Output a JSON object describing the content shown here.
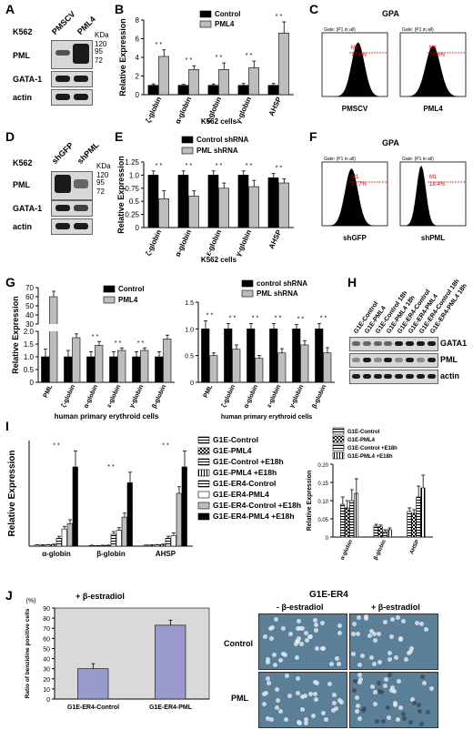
{
  "panels": {
    "A": "A",
    "B": "B",
    "C": "C",
    "D": "D",
    "E": "E",
    "F": "F",
    "G": "G",
    "H": "H",
    "I": "I",
    "J": "J"
  },
  "A": {
    "cell": "K562",
    "lanes": [
      "PMSCV",
      "PML4"
    ],
    "kda": "KDa",
    "markers": [
      "120",
      "95",
      "72"
    ],
    "rows": [
      "PML",
      "GATA-1",
      "actin"
    ]
  },
  "D": {
    "cell": "K562",
    "lanes": [
      "shGFP",
      "shPML"
    ],
    "kda": "KDa",
    "markers": [
      "120",
      "95",
      "72"
    ],
    "rows": [
      "PML",
      "GATA-1",
      "actin"
    ]
  },
  "C": {
    "title": "GPA",
    "plots": [
      {
        "gate": "Gate: (P1 in all)",
        "marker": "M1",
        "pct": "77.6%",
        "label": "PMSCV"
      },
      {
        "gate": "Gate: (P1 in all)",
        "marker": "M1",
        "pct": "77.6%",
        "label": "PML4"
      }
    ]
  },
  "F": {
    "title": "GPA",
    "plots": [
      {
        "gate": "Gate: (P1 in all)",
        "marker": "M1",
        "pct": "77.7%",
        "label": "shGFP"
      },
      {
        "gate": "Gate: (P1 in all)",
        "marker": "M1",
        "pct": "18.4%",
        "label": "shPML"
      }
    ]
  },
  "H": {
    "lanes": [
      "G1E-Control",
      "G1E-PML4",
      "G1E-Control 18h",
      "G1E-PML4 18h",
      "G1E-ER4-Control",
      "G1E-ER4-PML4",
      "G1E-ER4-Control 18h",
      "G1E-ER4-PML4 18h"
    ],
    "rows": [
      "GATA1",
      "PML",
      "actin"
    ]
  },
  "J_micro": {
    "title": "G1E-ER4",
    "cols": [
      "- β-estradiol",
      "+ β-estradiol"
    ],
    "rows": [
      "Control",
      "PML"
    ]
  },
  "chart_data": [
    {
      "id": "B",
      "type": "bar",
      "categories": [
        "ζ-globin",
        "α-globin",
        "ε-globin",
        "γ-globin",
        "AHSP"
      ],
      "series": [
        {
          "name": "Control",
          "values": [
            1,
            1,
            1,
            1,
            1
          ],
          "errors": [
            0.15,
            0.1,
            0.15,
            0.2,
            0.2
          ]
        },
        {
          "name": "PML4",
          "values": [
            4.1,
            2.7,
            2.7,
            2.9,
            6.6
          ],
          "errors": [
            0.7,
            0.4,
            0.7,
            0.7,
            1.2
          ]
        }
      ],
      "ylabel": "Relative Expression",
      "xlabel": "K562 cells",
      "ylim": [
        0,
        8
      ],
      "yticks": [
        0,
        2,
        4,
        6,
        8
      ],
      "sig": "* *",
      "colors": [
        "#000000",
        "#bdbdbd"
      ]
    },
    {
      "id": "E",
      "type": "bar",
      "categories": [
        "ζ-globin",
        "α-globin",
        "ε-globin",
        "γ-globin",
        "AHSP"
      ],
      "series": [
        {
          "name": "Control shRNA",
          "values": [
            1,
            1,
            1,
            1,
            0.95
          ],
          "errors": [
            0.08,
            0.08,
            0.08,
            0.08,
            0.08
          ]
        },
        {
          "name": "PML shRNA",
          "values": [
            0.55,
            0.6,
            0.75,
            0.78,
            0.85
          ],
          "errors": [
            0.15,
            0.1,
            0.1,
            0.12,
            0.08
          ]
        }
      ],
      "ylabel": "Relative Expression",
      "xlabel": "K562 cells",
      "ylim": [
        0,
        1.25
      ],
      "yticks": [
        0,
        0.25,
        0.5,
        0.75,
        1.0,
        1.25
      ],
      "ytick_labels": [
        "0",
        "0.25",
        "0.5",
        "0.75",
        "1.0",
        "1.25"
      ],
      "sig": "* *",
      "colors": [
        "#000000",
        "#bdbdbd"
      ]
    },
    {
      "id": "G1",
      "type": "bar",
      "categories": [
        "PML",
        "ζ-globin",
        "α-globin",
        "ε-globin",
        "γ-globin",
        "β-globin"
      ],
      "series": [
        {
          "name": "Control",
          "values": [
            1,
            1,
            1,
            1,
            1,
            1
          ],
          "errors": [
            0.3,
            0.25,
            0.2,
            0.2,
            0.2,
            0.2
          ]
        },
        {
          "name": "PML4",
          "values": [
            60,
            1.75,
            1.45,
            1.25,
            1.25,
            1.7
          ],
          "errors": [
            6,
            0.15,
            0.15,
            0.1,
            0.1,
            0.15
          ]
        }
      ],
      "ylabel": "Relative Expression",
      "xlabel": "human primary erythroid cells",
      "ylim": [
        0,
        70
      ],
      "yticks_low": [
        0,
        0.5,
        1.0,
        1.5,
        2.0
      ],
      "yticks_high": [
        30,
        40,
        50,
        60,
        70
      ],
      "ytick_labels": [
        "0",
        "0.5",
        "1.0",
        "1.5",
        "2.0",
        "30",
        "40",
        "50",
        "60",
        "70"
      ],
      "sig": "* *",
      "colors": [
        "#000000",
        "#bdbdbd"
      ]
    },
    {
      "id": "G2",
      "type": "bar",
      "categories": [
        "PML",
        "ζ-globin",
        "α-globin",
        "ε-globin",
        "γ-globin",
        "β-globin"
      ],
      "series": [
        {
          "name": "control shRNA",
          "values": [
            1,
            1,
            1,
            1,
            1,
            1
          ],
          "errors": [
            0.15,
            0.1,
            0.1,
            0.1,
            0.08,
            0.1
          ]
        },
        {
          "name": "PML shRNA",
          "values": [
            0.5,
            0.62,
            0.45,
            0.55,
            0.7,
            0.55
          ],
          "errors": [
            0.05,
            0.08,
            0.05,
            0.08,
            0.08,
            0.1
          ]
        }
      ],
      "ylim": [
        0,
        1.5
      ],
      "yticks": [
        0,
        0.5,
        1.0,
        1.5
      ],
      "ytick_labels": [
        "0",
        "0.5",
        "1.0",
        "1.5"
      ],
      "xlabel": "human primary erythroid cells",
      "sig": "* *",
      "colors": [
        "#000000",
        "#bdbdbd"
      ]
    },
    {
      "id": "I1",
      "type": "bar",
      "categories": [
        "α-globin",
        "β-globin",
        "AHSP"
      ],
      "series": [
        {
          "name": "G1E-Control",
          "values": [
            0.08,
            0.05,
            0.07
          ],
          "errors": [
            0.02,
            0.02,
            0.02
          ]
        },
        {
          "name": "G1E-PML4",
          "values": [
            0.08,
            0.03,
            0.08
          ],
          "errors": [
            0.02,
            0.01,
            0.02
          ]
        },
        {
          "name": "G1E-Control +E18h",
          "values": [
            0.1,
            0.05,
            0.1
          ],
          "errors": [
            0.02,
            0.02,
            0.02
          ]
        },
        {
          "name": "G1E-PML4 +E18h",
          "values": [
            0.12,
            0.06,
            0.12
          ],
          "errors": [
            0.03,
            0.02,
            0.03
          ]
        },
        {
          "name": "G1E-ER4-Control",
          "values": [
            0.6,
            0.9,
            0.6
          ],
          "errors": [
            0.15,
            0.2,
            0.15
          ]
        },
        {
          "name": "G1E-ER4-PML4",
          "values": [
            1.3,
            1.2,
            0.8
          ],
          "errors": [
            0.2,
            0.2,
            0.2
          ]
        },
        {
          "name": "G1E-ER4-Control +E18h",
          "values": [
            1.7,
            2.2,
            4.0
          ],
          "errors": [
            0.3,
            0.3,
            0.5
          ]
        },
        {
          "name": "G1E-ER4-PML4 +E18h",
          "values": [
            6.0,
            4.8,
            6.0
          ],
          "errors": [
            1.2,
            0.8,
            1.2
          ]
        }
      ],
      "ylabel": "Relative Expression",
      "sig": "* *",
      "ylim": [
        0,
        8
      ],
      "colors": [
        "#ffffff",
        "#ffffff",
        "#ffffff",
        "#ffffff",
        "#ffffff",
        "#ffffff",
        "#bdbdbd",
        "#000000"
      ],
      "patterns": [
        "hstripe",
        "check",
        "hstripe",
        "vstripe",
        "hstripe",
        "plain",
        "plain",
        "plain"
      ]
    },
    {
      "id": "I2",
      "type": "bar",
      "categories": [
        "α-globin",
        "β-globin",
        "AHSP"
      ],
      "series": [
        {
          "name": "G1E-Control",
          "values": [
            0.09,
            0.03,
            0.07
          ],
          "errors": [
            0.02,
            0.005,
            0.01
          ]
        },
        {
          "name": "G1E-PML4",
          "values": [
            0.08,
            0.028,
            0.065
          ],
          "errors": [
            0.02,
            0.005,
            0.01
          ]
        },
        {
          "name": "G1E-Control +E18h",
          "values": [
            0.1,
            0.015,
            0.11
          ],
          "errors": [
            0.03,
            0.005,
            0.03
          ]
        },
        {
          "name": "G1E-PML4 +E18h",
          "values": [
            0.12,
            0.02,
            0.135
          ],
          "errors": [
            0.04,
            0.005,
            0.035
          ]
        }
      ],
      "ylabel": "Relative Expression",
      "ylim": [
        0,
        0.2
      ],
      "yticks": [
        0,
        0.05,
        0.1,
        0.15,
        0.2
      ],
      "ytick_labels": [
        "0",
        "0.05",
        "0.10",
        "0.15",
        "0.20"
      ],
      "patterns": [
        "hstripe",
        "check",
        "hstripe",
        "vstripe"
      ]
    },
    {
      "id": "J",
      "type": "bar",
      "title": "+ β-estradiol",
      "categories": [
        "G1E-ER4-Control",
        "G1E-ER4-PML"
      ],
      "series": [
        {
          "name": "",
          "values": [
            30,
            73
          ],
          "errors": [
            5,
            5
          ]
        }
      ],
      "ylabel": "Ratio of benzidine positive cells",
      "yunit": "(%)",
      "ylim": [
        0,
        90
      ],
      "yticks": [
        0,
        10,
        20,
        30,
        40,
        50,
        60,
        70,
        80,
        90
      ],
      "colors": [
        "#9999cc"
      ]
    }
  ]
}
